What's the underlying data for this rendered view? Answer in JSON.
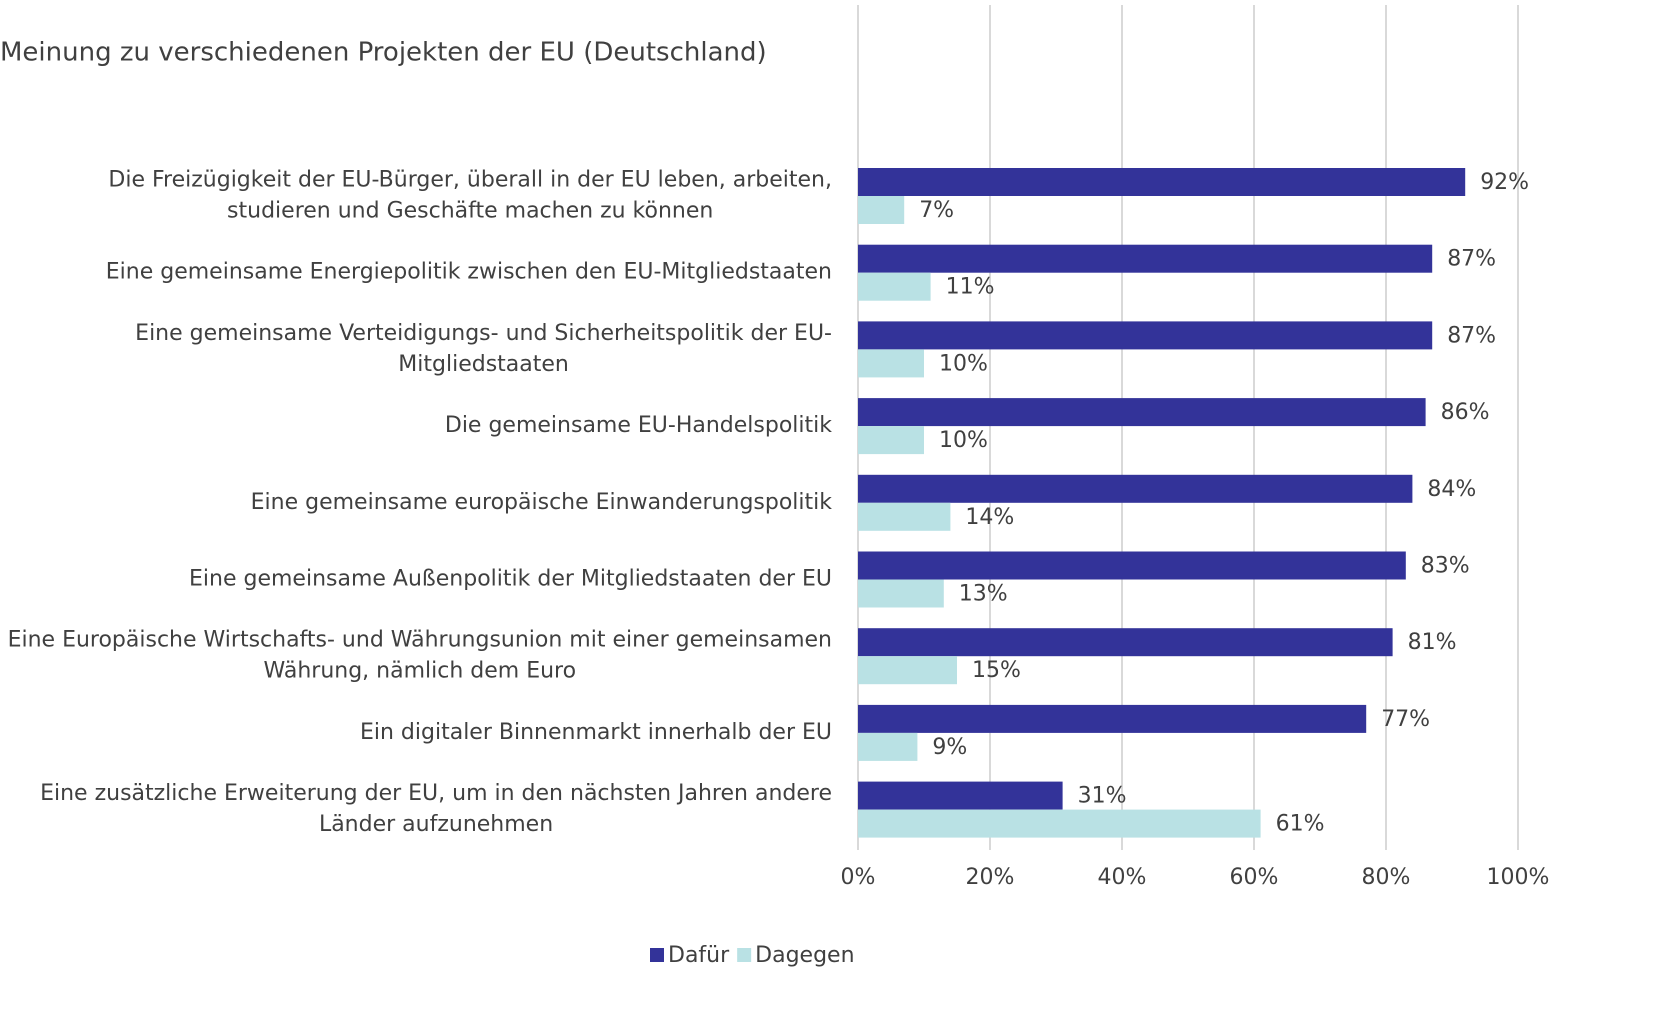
{
  "chart_data": {
    "type": "bar",
    "orientation": "horizontal",
    "title": "Meinung zu verschiedenen Projekten der EU (Deutschland)",
    "categories": [
      "Die Freizügigkeit der EU-Bürger, überall in der EU leben, arbeiten, studieren und Geschäfte machen zu können",
      "Eine gemeinsame Energiepolitik zwischen den EU-Mitgliedstaaten",
      "Eine gemeinsame Verteidigungs- und Sicherheitspolitik der EU-Mitgliedstaaten",
      "Die gemeinsame EU-Handelspolitik",
      "Eine gemeinsame europäische Einwanderungspolitik",
      "Eine gemeinsame Außenpolitik der Mitgliedstaaten der EU",
      "Eine Europäische Wirtschafts- und Währungsunion mit einer gemeinsamen Währung, nämlich dem Euro",
      "Ein digitaler Binnenmarkt innerhalb der EU",
      "Eine zusätzliche Erweiterung der EU, um in den nächsten Jahren andere Länder aufzunehmen"
    ],
    "series": [
      {
        "name": "Dafür",
        "color": "#333399",
        "values": [
          92,
          87,
          87,
          86,
          84,
          83,
          81,
          77,
          31
        ],
        "value_labels": [
          "92%",
          "87%",
          "87%",
          "86%",
          "84%",
          "83%",
          "81%",
          "77%",
          "31%"
        ]
      },
      {
        "name": "Dagegen",
        "color": "#b9e1e4",
        "values": [
          7,
          11,
          10,
          10,
          14,
          13,
          15,
          9,
          61
        ],
        "value_labels": [
          "7%",
          "11%",
          "10%",
          "10%",
          "14%",
          "13%",
          "15%",
          "9%",
          "61%"
        ]
      }
    ],
    "xlim": [
      0,
      100
    ],
    "xticks": [
      {
        "value": 0,
        "label": "0%"
      },
      {
        "value": 20,
        "label": "20%"
      },
      {
        "value": 40,
        "label": "40%"
      },
      {
        "value": 60,
        "label": "60%"
      },
      {
        "value": 80,
        "label": "80%"
      },
      {
        "value": 100,
        "label": "100%"
      }
    ],
    "grid": true,
    "legend": "bottom"
  }
}
